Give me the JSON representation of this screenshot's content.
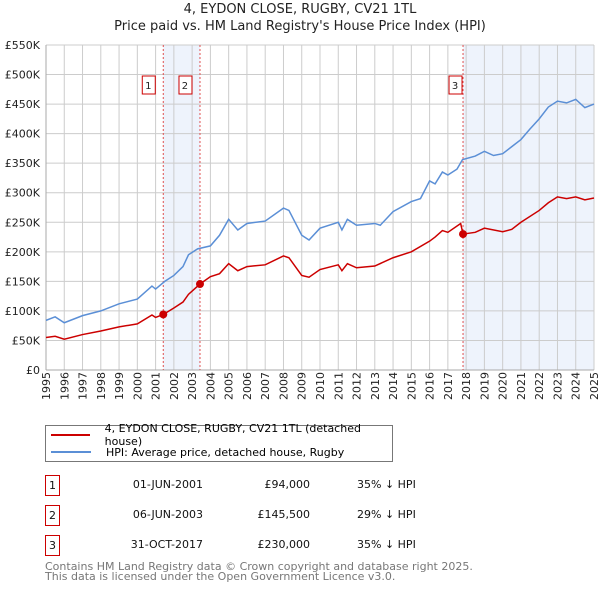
{
  "chart_data": {
    "type": "line",
    "title": "4, EYDON CLOSE, RUGBY, CV21 1TL",
    "subtitle": "Price paid vs. HM Land Registry's House Price Index (HPI)",
    "xlim": [
      1995,
      2025
    ],
    "ylim": [
      0,
      550000
    ],
    "yticks": [
      {
        "v": 0,
        "label": "£0"
      },
      {
        "v": 50000,
        "label": "£50K"
      },
      {
        "v": 100000,
        "label": "£100K"
      },
      {
        "v": 150000,
        "label": "£150K"
      },
      {
        "v": 200000,
        "label": "£200K"
      },
      {
        "v": 250000,
        "label": "£250K"
      },
      {
        "v": 300000,
        "label": "£300K"
      },
      {
        "v": 350000,
        "label": "£350K"
      },
      {
        "v": 400000,
        "label": "£400K"
      },
      {
        "v": 450000,
        "label": "£450K"
      },
      {
        "v": 500000,
        "label": "£500K"
      },
      {
        "v": 550000,
        "label": "£550K"
      }
    ],
    "xticks": [
      "1995",
      "1996",
      "1997",
      "1998",
      "1999",
      "2000",
      "2001",
      "2002",
      "2003",
      "2004",
      "2005",
      "2006",
      "2007",
      "2008",
      "2009",
      "2010",
      "2011",
      "2012",
      "2013",
      "2014",
      "2015",
      "2016",
      "2017",
      "2018",
      "2019",
      "2020",
      "2021",
      "2022",
      "2023",
      "2024",
      "2025"
    ],
    "grid": true,
    "series": [
      {
        "name": "4, EYDON CLOSE, RUGBY, CV21 1TL (detached house)",
        "color": "#cc0000",
        "x": [
          1995,
          1995.5,
          1996,
          1997,
          1998,
          1999,
          2000,
          2000.8,
          2001,
          2001.42,
          2002,
          2002.5,
          2002.8,
          2003.43,
          2004,
          2004.5,
          2005,
          2005.5,
          2006,
          2007,
          2008,
          2008.3,
          2009,
          2009.4,
          2010,
          2011,
          2011.2,
          2011.5,
          2012,
          2013,
          2014,
          2015,
          2016,
          2016.3,
          2016.7,
          2017,
          2017.7,
          2017.83,
          2018.5,
          2019,
          2020,
          2020.5,
          2021,
          2022,
          2022.5,
          2023,
          2023.5,
          2024,
          2024.5,
          2025
        ],
        "y": [
          55000,
          57000,
          52000,
          60000,
          66000,
          73000,
          78000,
          93000,
          89000,
          94000,
          105000,
          115000,
          128000,
          145500,
          158000,
          163000,
          180000,
          168000,
          175000,
          178000,
          193000,
          190000,
          160000,
          157000,
          170000,
          178000,
          168000,
          180000,
          173000,
          176000,
          190000,
          200000,
          218000,
          225000,
          236000,
          233000,
          248000,
          230000,
          233000,
          240000,
          234000,
          238000,
          250000,
          270000,
          283000,
          293000,
          290000,
          293000,
          288000,
          291000
        ]
      },
      {
        "name": "HPI: Average price, detached house, Rugby",
        "color": "#5b8fd6",
        "x": [
          1995,
          1995.5,
          1996,
          1997,
          1998,
          1999,
          2000,
          2000.8,
          2001,
          2001.5,
          2002,
          2002.5,
          2002.8,
          2003.3,
          2004,
          2004.5,
          2005,
          2005.5,
          2006,
          2007,
          2008,
          2008.3,
          2009,
          2009.4,
          2010,
          2011,
          2011.2,
          2011.5,
          2012,
          2013,
          2013.3,
          2014,
          2015,
          2015.5,
          2016,
          2016.3,
          2016.7,
          2017,
          2017.5,
          2017.8,
          2018.5,
          2019,
          2019.5,
          2020,
          2020.5,
          2021,
          2021.5,
          2022,
          2022.5,
          2023,
          2023.5,
          2024,
          2024.5,
          2025
        ],
        "y": [
          84000,
          90000,
          80000,
          92000,
          100000,
          112000,
          120000,
          142000,
          137000,
          150000,
          160000,
          175000,
          195000,
          205000,
          210000,
          228000,
          255000,
          237000,
          248000,
          252000,
          274000,
          270000,
          228000,
          220000,
          240000,
          250000,
          237000,
          255000,
          245000,
          248000,
          245000,
          268000,
          285000,
          290000,
          320000,
          315000,
          335000,
          330000,
          340000,
          356000,
          362000,
          370000,
          363000,
          366000,
          378000,
          390000,
          408000,
          425000,
          445000,
          455000,
          452000,
          458000,
          444000,
          450000
        ]
      }
    ],
    "sales": [
      {
        "n": "1",
        "x": 2001.42,
        "y": 94000,
        "date": "01-JUN-2001",
        "price": "£94,000",
        "hpi": "35% ↓ HPI"
      },
      {
        "n": "2",
        "x": 2003.43,
        "y": 145500,
        "date": "06-JUN-2003",
        "price": "£145,500",
        "hpi": "29% ↓ HPI"
      },
      {
        "n": "3",
        "x": 2017.83,
        "y": 230000,
        "date": "31-OCT-2017",
        "price": "£230,000",
        "hpi": "35% ↓ HPI"
      }
    ],
    "shaded": [
      [
        2001.42,
        2003.43
      ],
      [
        2017.83,
        2025
      ]
    ]
  },
  "footer": [
    "Contains HM Land Registry data © Crown copyright and database right 2025.",
    "This data is licensed under the Open Government Licence v3.0."
  ]
}
